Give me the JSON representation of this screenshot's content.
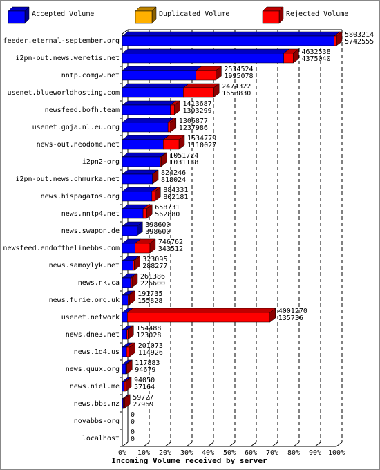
{
  "chart_data": {
    "type": "bar3d-stacked-horizontal",
    "x_label": "Incoming Volume received by server",
    "categories": [
      "feeder.eternal-september.org",
      "i2pn-out.news.weretis.net",
      "nntp.comgw.net",
      "usenet.blueworldhosting.com",
      "newsfeed.bofh.team",
      "usenet.goja.nl.eu.org",
      "news-out.neodome.net",
      "i2pn2-org",
      "i2pn-out.news.chmurka.net",
      "news.hispagatos.org",
      "news.nntp4.net",
      "news.swapon.de",
      "newsfeed.endofthelinebbs.com",
      "news.samoylyk.net",
      "news.nk.ca",
      "news.furie.org.uk",
      "usenet.network",
      "news.dne3.net",
      "news.1d4.us",
      "news.quux.org",
      "news.niel.me",
      "news.bbs.nz",
      "novabbs-org",
      "localhost"
    ],
    "totals": [
      5803214,
      4632538,
      2534524,
      2474322,
      1413687,
      1306877,
      1534779,
      1051724,
      824246,
      884331,
      658731,
      398600,
      746762,
      323095,
      261386,
      191735,
      4001270,
      154488,
      201073,
      117883,
      94050,
      59727,
      0,
      0
    ],
    "series": [
      {
        "name": "Accepted Volume",
        "color": "#0000ff",
        "values": [
          5742555,
          4375040,
          1995078,
          1653830,
          1303299,
          1237986,
          1110027,
          1031138,
          818024,
          802181,
          562880,
          398600,
          343512,
          288277,
          226600,
          155828,
          135736,
          123028,
          114926,
          94679,
          57164,
          27969,
          0,
          0
        ]
      },
      {
        "name": "Duplicated Volume",
        "color": "#ffb000",
        "values": [
          0,
          0,
          0,
          0,
          0,
          0,
          0,
          0,
          0,
          0,
          0,
          0,
          0,
          0,
          0,
          0,
          0,
          0,
          0,
          0,
          0,
          0,
          0,
          0
        ]
      },
      {
        "name": "Rejected Volume",
        "color": "#ff0000",
        "values": [
          60659,
          257498,
          539446,
          820492,
          110388,
          68891,
          424752,
          20586,
          6222,
          82150,
          95851,
          0,
          403250,
          34818,
          34786,
          35907,
          3865534,
          31460,
          86147,
          23204,
          36886,
          31758,
          0,
          0
        ]
      }
    ],
    "xlim": [
      0,
      5803214
    ],
    "xticks": [
      {
        "value": 0,
        "label": "0%"
      },
      {
        "value": 580321.4,
        "label": "10%"
      },
      {
        "value": 1160642.8,
        "label": "20%"
      },
      {
        "value": 1740964.2,
        "label": "30%"
      },
      {
        "value": 2321285.6,
        "label": "40%"
      },
      {
        "value": 2901607,
        "label": "50%"
      },
      {
        "value": 3481928.4,
        "label": "60%"
      },
      {
        "value": 4062249.8,
        "label": "70%"
      },
      {
        "value": 4642571.2,
        "label": "80%"
      },
      {
        "value": 5222892.6,
        "label": "90%"
      },
      {
        "value": 5803214,
        "label": "100%"
      }
    ],
    "grid": true
  }
}
